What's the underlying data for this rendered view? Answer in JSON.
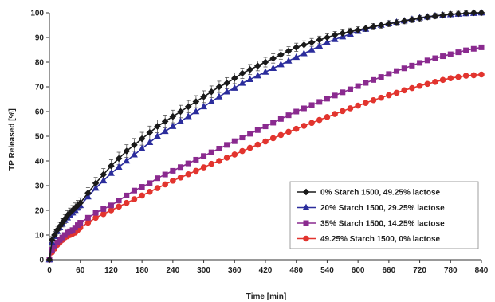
{
  "chart_data": {
    "type": "line",
    "title": "",
    "xlabel": "Time [min]",
    "ylabel": "TP Released [%]",
    "xlim": [
      0,
      840
    ],
    "ylim": [
      0,
      100
    ],
    "xticks": [
      0,
      60,
      120,
      180,
      240,
      300,
      360,
      420,
      480,
      540,
      600,
      660,
      720,
      780,
      840
    ],
    "yticks": [
      0,
      10,
      20,
      30,
      40,
      50,
      60,
      70,
      80,
      90,
      100
    ],
    "grid": false,
    "legend_position": "bottom-right",
    "x": [
      0,
      5,
      10,
      15,
      20,
      25,
      30,
      35,
      40,
      45,
      50,
      55,
      60,
      75,
      90,
      105,
      120,
      135,
      150,
      165,
      180,
      195,
      210,
      225,
      240,
      255,
      270,
      285,
      300,
      315,
      330,
      345,
      360,
      375,
      390,
      405,
      420,
      435,
      450,
      465,
      480,
      495,
      510,
      525,
      540,
      555,
      570,
      585,
      600,
      615,
      630,
      645,
      660,
      675,
      690,
      705,
      720,
      735,
      750,
      765,
      780,
      795,
      810,
      825,
      840
    ],
    "series": [
      {
        "name": "0% Starch 1500, 49.25% lactose",
        "color": "#1a1a1a",
        "marker": "diamond",
        "error_bars": true,
        "values": [
          0,
          8,
          10,
          12,
          13.5,
          15,
          16.5,
          18,
          19,
          20,
          21,
          22,
          23,
          27,
          31,
          34.5,
          38,
          41,
          44,
          46.5,
          49,
          51.5,
          54,
          56,
          58,
          60,
          62,
          64,
          66,
          68,
          70,
          71.5,
          73.5,
          75.5,
          77,
          78.5,
          80,
          81.5,
          83,
          84.5,
          86,
          87,
          88,
          89,
          90,
          91,
          91.7,
          92.4,
          93,
          93.7,
          94.4,
          95,
          95.6,
          96,
          96.7,
          97.2,
          97.8,
          98.3,
          98.7,
          99,
          99.4,
          99.6,
          99.8,
          100,
          100
        ]
      },
      {
        "name": "20% Starch 1500, 29.25% lactose",
        "color": "#2b2d9c",
        "marker": "triangle",
        "error_bars": false,
        "values": [
          0,
          7,
          9.5,
          11.5,
          13,
          14.5,
          16,
          17,
          18,
          19,
          20,
          21,
          22,
          25.5,
          29,
          32,
          35,
          37.5,
          40,
          42.5,
          45,
          47.5,
          50,
          52,
          54,
          56,
          58,
          60,
          62,
          64,
          66,
          68,
          69.5,
          71.5,
          73,
          74.5,
          76,
          77.5,
          79,
          80.5,
          82,
          83.5,
          85,
          86.5,
          88,
          89.2,
          90.3,
          91.4,
          92.5,
          93.4,
          94.3,
          95,
          95.6,
          96.2,
          96.8,
          97.4,
          98,
          98.4,
          98.8,
          99.1,
          99.3,
          99.5,
          99.7,
          99.8,
          100
        ]
      },
      {
        "name": "35% Starch 1500, 14.25% lactose",
        "color": "#8a2a8f",
        "marker": "square",
        "error_bars": false,
        "values": [
          0,
          4,
          5.5,
          7,
          8,
          9,
          10,
          11,
          11.5,
          12,
          13,
          14,
          15,
          17,
          19,
          20.5,
          22,
          24,
          26,
          28,
          29.5,
          31,
          33,
          34.5,
          36,
          37.5,
          39,
          40.5,
          42,
          43.5,
          45,
          46.5,
          48,
          49.5,
          51,
          52.5,
          54,
          55.5,
          57,
          58.5,
          60,
          61.3,
          62.6,
          63.9,
          65.2,
          66.5,
          67.8,
          69,
          70.3,
          71.6,
          72.8,
          74,
          75.2,
          76.4,
          77.5,
          78.6,
          79.7,
          80.7,
          81.6,
          82.4,
          83.2,
          84,
          84.8,
          85.4,
          86
        ]
      },
      {
        "name": "49.25% Starch 1500, 0% lactose",
        "color": "#e2342e",
        "marker": "circle",
        "error_bars": false,
        "values": [
          0,
          3,
          4.5,
          6,
          7,
          8,
          9,
          9.5,
          10,
          10.5,
          11,
          12,
          13,
          15,
          17,
          18.5,
          20,
          21.5,
          23,
          24.5,
          26,
          27.5,
          29,
          30.5,
          32,
          33.3,
          34.6,
          36,
          37.4,
          38.8,
          40,
          41.3,
          42.6,
          44,
          45.3,
          46.6,
          47.9,
          49.2,
          50.5,
          51.8,
          53,
          54.2,
          55.4,
          56.6,
          57.8,
          59,
          60.2,
          61.3,
          62.4,
          63.5,
          64.6,
          65.6,
          66.6,
          67.6,
          68.6,
          69.5,
          70.4,
          71.2,
          72,
          72.8,
          73.5,
          74,
          74.5,
          74.7,
          75
        ]
      }
    ]
  }
}
